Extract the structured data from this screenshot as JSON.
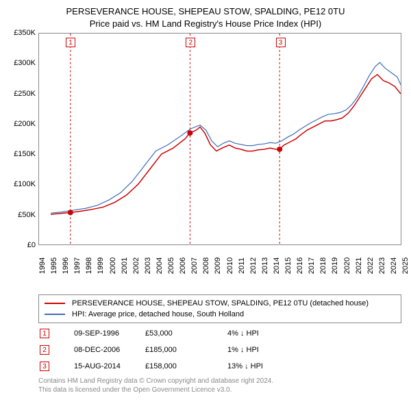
{
  "title1": "PERSEVERANCE HOUSE, SHEPEAU STOW, SPALDING, PE12 0TU",
  "title2": "Price paid vs. HM Land Registry's House Price Index (HPI)",
  "chart": {
    "type": "line",
    "background_color": "#ffffff",
    "border_color": "#888888",
    "x": {
      "min": 1994,
      "max": 2025,
      "ticks": [
        1994,
        1995,
        1996,
        1997,
        1998,
        1999,
        2000,
        2001,
        2002,
        2003,
        2004,
        2005,
        2006,
        2007,
        2008,
        2009,
        2010,
        2011,
        2012,
        2013,
        2014,
        2015,
        2016,
        2017,
        2018,
        2019,
        2020,
        2021,
        2022,
        2023,
        2024,
        2025
      ]
    },
    "y": {
      "min": 0,
      "max": 350000,
      "ticks": [
        0,
        50000,
        100000,
        150000,
        200000,
        250000,
        300000,
        350000
      ],
      "tick_labels": [
        "£0",
        "£50K",
        "£100K",
        "£150K",
        "£200K",
        "£250K",
        "£300K",
        "£350K"
      ],
      "label_fontsize": 11
    },
    "series": [
      {
        "key": "property",
        "label": "PERSEVERANCE HOUSE, SHEPEAU STOW, SPALDING, PE12 0TU (detached house)",
        "color": "#cc0000",
        "width": 1.5,
        "points": [
          [
            1995.0,
            50000
          ],
          [
            1996.69,
            53000
          ],
          [
            1997.5,
            55000
          ],
          [
            1998.5,
            58000
          ],
          [
            1999.5,
            62000
          ],
          [
            2000.5,
            70000
          ],
          [
            2001.5,
            82000
          ],
          [
            2002.5,
            100000
          ],
          [
            2003.5,
            125000
          ],
          [
            2004.5,
            150000
          ],
          [
            2005.5,
            160000
          ],
          [
            2006.5,
            175000
          ],
          [
            2006.94,
            185000
          ],
          [
            2007.5,
            190000
          ],
          [
            2007.8,
            195000
          ],
          [
            2008.2,
            185000
          ],
          [
            2008.7,
            165000
          ],
          [
            2009.2,
            155000
          ],
          [
            2009.7,
            160000
          ],
          [
            2010.3,
            165000
          ],
          [
            2010.8,
            160000
          ],
          [
            2011.3,
            158000
          ],
          [
            2011.8,
            155000
          ],
          [
            2012.3,
            155000
          ],
          [
            2012.8,
            157000
          ],
          [
            2013.3,
            158000
          ],
          [
            2013.8,
            160000
          ],
          [
            2014.3,
            158000
          ],
          [
            2014.62,
            158000
          ],
          [
            2015.0,
            165000
          ],
          [
            2015.5,
            170000
          ],
          [
            2016.0,
            175000
          ],
          [
            2016.5,
            183000
          ],
          [
            2017.0,
            190000
          ],
          [
            2017.5,
            195000
          ],
          [
            2018.0,
            200000
          ],
          [
            2018.5,
            205000
          ],
          [
            2019.0,
            205000
          ],
          [
            2019.5,
            207000
          ],
          [
            2020.0,
            210000
          ],
          [
            2020.5,
            218000
          ],
          [
            2021.0,
            230000
          ],
          [
            2021.5,
            245000
          ],
          [
            2022.0,
            260000
          ],
          [
            2022.5,
            275000
          ],
          [
            2023.0,
            282000
          ],
          [
            2023.5,
            272000
          ],
          [
            2024.0,
            268000
          ],
          [
            2024.5,
            262000
          ],
          [
            2025.0,
            250000
          ]
        ]
      },
      {
        "key": "hpi",
        "label": "HPI: Average price, detached house, South Holland",
        "color": "#3b6db5",
        "width": 1.2,
        "points": [
          [
            1995.0,
            52000
          ],
          [
            1996.0,
            54000
          ],
          [
            1997.0,
            57000
          ],
          [
            1998.0,
            60000
          ],
          [
            1999.0,
            65000
          ],
          [
            2000.0,
            74000
          ],
          [
            2001.0,
            86000
          ],
          [
            2002.0,
            105000
          ],
          [
            2003.0,
            130000
          ],
          [
            2004.0,
            155000
          ],
          [
            2005.0,
            165000
          ],
          [
            2006.0,
            178000
          ],
          [
            2007.0,
            192000
          ],
          [
            2007.8,
            198000
          ],
          [
            2008.3,
            190000
          ],
          [
            2008.8,
            172000
          ],
          [
            2009.3,
            162000
          ],
          [
            2009.8,
            168000
          ],
          [
            2010.3,
            172000
          ],
          [
            2010.8,
            168000
          ],
          [
            2011.3,
            166000
          ],
          [
            2011.8,
            164000
          ],
          [
            2012.3,
            164000
          ],
          [
            2012.8,
            166000
          ],
          [
            2013.3,
            167000
          ],
          [
            2013.8,
            169000
          ],
          [
            2014.3,
            168000
          ],
          [
            2014.8,
            172000
          ],
          [
            2015.3,
            178000
          ],
          [
            2015.8,
            183000
          ],
          [
            2016.3,
            190000
          ],
          [
            2016.8,
            196000
          ],
          [
            2017.3,
            202000
          ],
          [
            2017.8,
            207000
          ],
          [
            2018.3,
            212000
          ],
          [
            2018.8,
            216000
          ],
          [
            2019.3,
            217000
          ],
          [
            2019.8,
            219000
          ],
          [
            2020.3,
            223000
          ],
          [
            2020.8,
            232000
          ],
          [
            2021.3,
            245000
          ],
          [
            2021.8,
            262000
          ],
          [
            2022.3,
            280000
          ],
          [
            2022.8,
            295000
          ],
          [
            2023.2,
            302000
          ],
          [
            2023.7,
            292000
          ],
          [
            2024.2,
            285000
          ],
          [
            2024.7,
            278000
          ],
          [
            2025.0,
            265000
          ]
        ]
      }
    ],
    "events": [
      {
        "n": "1",
        "year": 1996.69,
        "value": 53000,
        "color": "#cc0000"
      },
      {
        "n": "2",
        "year": 2006.94,
        "value": 185000,
        "color": "#cc0000"
      },
      {
        "n": "3",
        "year": 2014.62,
        "value": 158000,
        "color": "#cc0000"
      }
    ],
    "event_dot_radius": 4
  },
  "legend": {
    "border_color": "#888888",
    "rows": [
      {
        "color": "#cc0000",
        "label": "PERSEVERANCE HOUSE, SHEPEAU STOW, SPALDING, PE12 0TU (detached house)"
      },
      {
        "color": "#3b6db5",
        "label": "HPI: Average price, detached house, South Holland"
      }
    ]
  },
  "sales": [
    {
      "n": "1",
      "color": "#cc0000",
      "date": "09-SEP-1996",
      "price": "£53,000",
      "diff": "4% ↓ HPI"
    },
    {
      "n": "2",
      "color": "#cc0000",
      "date": "08-DEC-2006",
      "price": "£185,000",
      "diff": "1% ↓ HPI"
    },
    {
      "n": "3",
      "color": "#cc0000",
      "date": "15-AUG-2014",
      "price": "£158,000",
      "diff": "13% ↓ HPI"
    }
  ],
  "attribution": {
    "line1": "Contains HM Land Registry data © Crown copyright and database right 2024.",
    "line2": "This data is licensed under the Open Government Licence v3.0.",
    "color": "#888888"
  }
}
